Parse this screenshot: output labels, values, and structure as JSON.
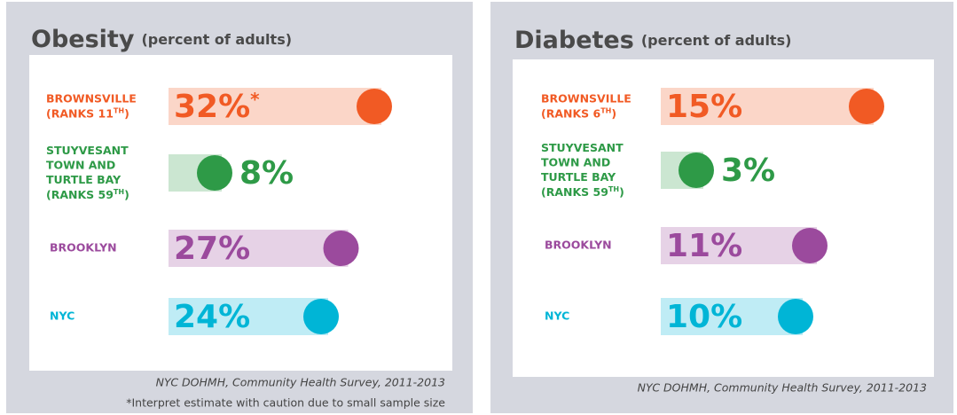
{
  "chart_data": [
    {
      "type": "bar",
      "title": "Obesity",
      "subtitle": "(percent of adults)",
      "categories": [
        [
          "BROWNSVILLE",
          "(RANKS 11TH)"
        ],
        [
          "STUYVESANT",
          "TOWN AND",
          "TURTLE BAY",
          "(RANKS 59TH)"
        ],
        [
          "BROOKLYN"
        ],
        [
          "NYC"
        ]
      ],
      "values": [
        32,
        8,
        27,
        24
      ],
      "value_labels": [
        "32%*",
        "8%",
        "27%",
        "24%"
      ],
      "colors": [
        "#f15a24",
        "#2e9a47",
        "#9b4a9d",
        "#00b5d6"
      ],
      "source": "NYC DOHMH, Community Health Survey, 2011-2013",
      "footnote": "*Interpret estimate with caution due to small sample size"
    },
    {
      "type": "bar",
      "title": "Diabetes",
      "subtitle": "(percent of adults)",
      "categories": [
        [
          "BROWNSVILLE",
          "(RANKS 6TH)"
        ],
        [
          "STUYVESANT",
          "TOWN AND",
          "TURTLE BAY",
          "(RANKS 59TH)"
        ],
        [
          "BROOKLYN"
        ],
        [
          "NYC"
        ]
      ],
      "values": [
        15,
        3,
        11,
        10
      ],
      "value_labels": [
        "15%",
        "3%",
        "11%",
        "10%"
      ],
      "colors": [
        "#f15a24",
        "#2e9a47",
        "#9b4a9d",
        "#00b5d6"
      ],
      "source": "NYC DOHMH, Community Health Survey, 2011-2013"
    }
  ]
}
